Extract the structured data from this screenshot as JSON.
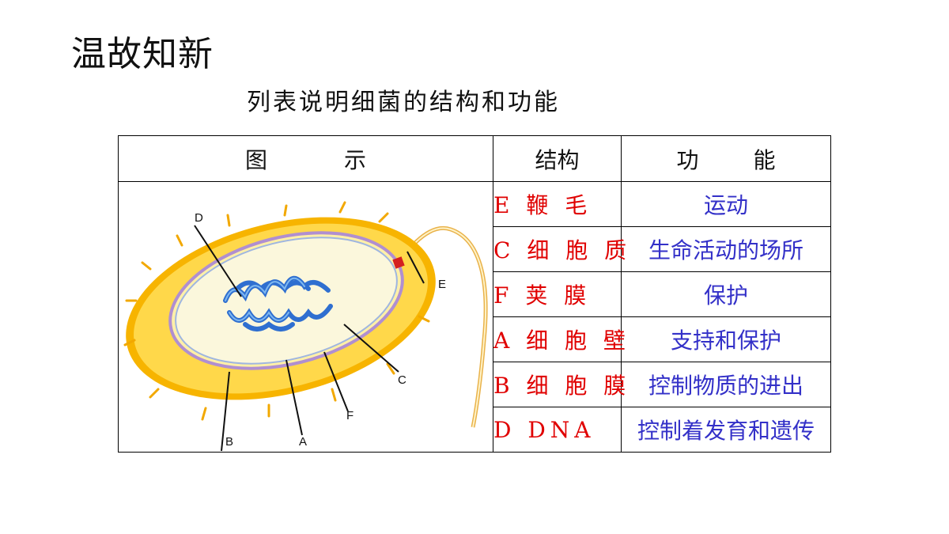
{
  "title": "温故知新",
  "subtitle": "列表说明细菌的结构和功能",
  "table": {
    "headers": [
      "图 示",
      "结构",
      "功 能"
    ],
    "rows": [
      {
        "structure": "E 鞭 毛",
        "function": "运动"
      },
      {
        "structure": "C 细 胞 质",
        "function": "生命活动的场所"
      },
      {
        "structure": "F 荚 膜",
        "function": "保护"
      },
      {
        "structure": "A 细 胞 壁",
        "function": "支持和保护"
      },
      {
        "structure": "B 细 胞 膜",
        "function": "控制物质的进出"
      },
      {
        "structure": "D  DNA",
        "function": "控制着发育和遗传"
      }
    ]
  },
  "diagram": {
    "labels": {
      "a": "A",
      "b": "B",
      "c": "C",
      "d": "D",
      "e": "E",
      "f": "F"
    },
    "colors": {
      "capsule": "#f5b800",
      "capsule_light": "#ffe680",
      "cytoplasm": "#fbf7dc",
      "dna": "#2f6fd0",
      "flagellum": "#f0c060"
    }
  }
}
